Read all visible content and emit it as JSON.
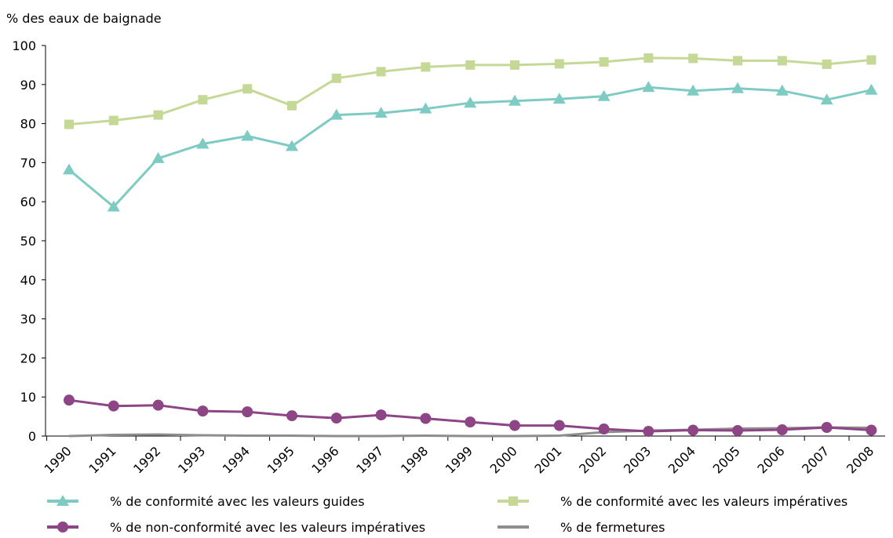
{
  "chart_data": {
    "type": "line",
    "title": "",
    "xlabel": "",
    "ylabel": "% des eaux de baignade",
    "ylim": [
      0,
      100
    ],
    "yticks": [
      0,
      10,
      20,
      30,
      40,
      50,
      60,
      70,
      80,
      90,
      100
    ],
    "grid": false,
    "legend_position": "bottom",
    "categories": [
      "1990",
      "1991",
      "1992",
      "1993",
      "1994",
      "1995",
      "1996",
      "1997",
      "1998",
      "1999",
      "2000",
      "2001",
      "2002",
      "2003",
      "2004",
      "2005",
      "2006",
      "2007",
      "2008"
    ],
    "series": [
      {
        "name": "% de conformité avec les valeurs guides",
        "color": "#7dcbc3",
        "marker": "triangle",
        "values": [
          68.2,
          58.7,
          71.1,
          74.8,
          76.8,
          74.2,
          82.2,
          82.7,
          83.8,
          85.3,
          85.8,
          86.3,
          87.0,
          89.3,
          88.4,
          89.0,
          88.4,
          86.1,
          88.6
        ]
      },
      {
        "name": "% de conformité avec les valeurs impératives",
        "color": "#c5d896",
        "marker": "square",
        "values": [
          79.8,
          80.8,
          82.2,
          86.1,
          88.9,
          84.6,
          91.6,
          93.3,
          94.5,
          95.0,
          95.0,
          95.3,
          95.8,
          96.8,
          96.7,
          96.1,
          96.1,
          95.2,
          96.3
        ]
      },
      {
        "name": "% de non-conformité avec les valeurs impératives",
        "color": "#8e4585",
        "marker": "circle",
        "values": [
          9.2,
          7.7,
          7.9,
          6.4,
          6.2,
          5.2,
          4.6,
          5.4,
          4.5,
          3.6,
          2.7,
          2.7,
          1.8,
          1.2,
          1.5,
          1.4,
          1.6,
          2.2,
          1.5
        ]
      },
      {
        "name": "% de fermetures",
        "color": "#8d8d8d",
        "marker": "none",
        "values": [
          0.0,
          0.3,
          0.4,
          0.2,
          0.1,
          0.1,
          0.0,
          0.0,
          0.1,
          0.0,
          0.0,
          0.1,
          1.0,
          1.4,
          1.6,
          1.9,
          2.0,
          2.2,
          2.1
        ]
      }
    ]
  }
}
